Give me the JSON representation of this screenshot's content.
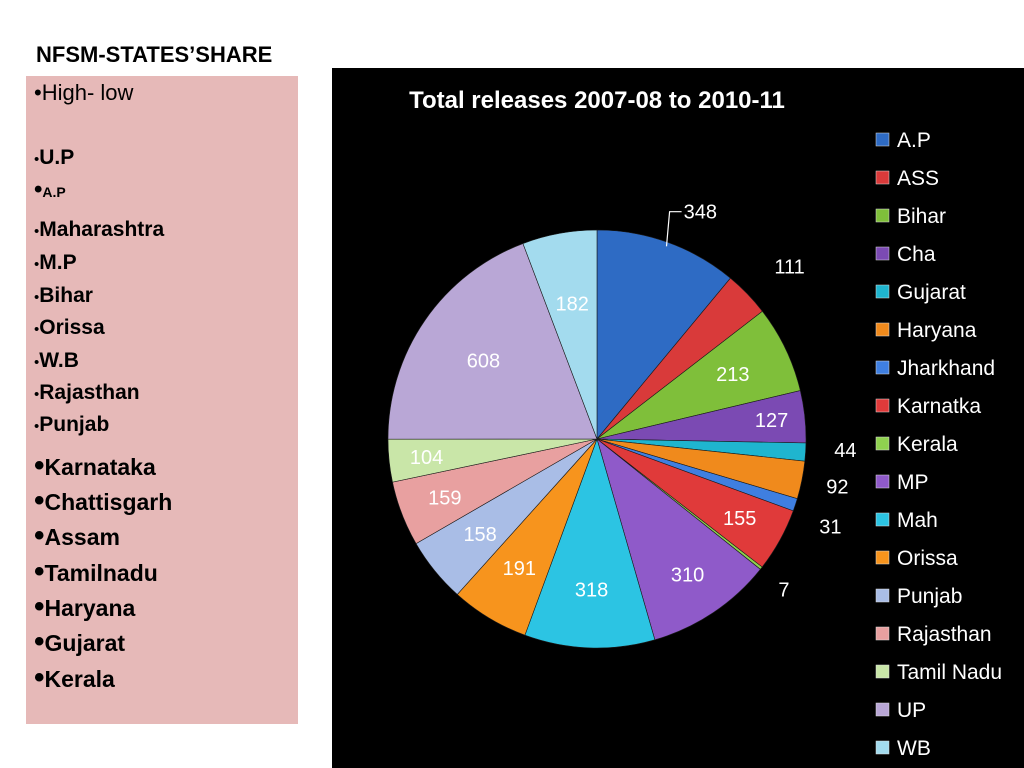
{
  "slide": {
    "title": "NFSM-STATES’SHARE"
  },
  "list": {
    "header": "High- low",
    "items": [
      "U.P",
      "A.P",
      "Maharashtra",
      "M.P",
      "Bihar",
      "Orissa",
      "W.B",
      "Rajasthan",
      "Punjab",
      "Karnataka",
      "Chattisgarh",
      "Assam",
      "Tamilnadu",
      "Haryana",
      "Gujarat",
      "Kerala"
    ],
    "bullet": "•"
  },
  "chart_data": {
    "type": "pie",
    "title": "Total releases 2007-08 to 2010-11",
    "legend_position": "right",
    "categories": [
      "A.P",
      "ASS",
      "Bihar",
      "Cha",
      "Gujarat",
      "Haryana",
      "Jharkhand",
      "Karnatka",
      "Kerala",
      "MP",
      "Mah",
      "Orissa",
      "Punjab",
      "Rajasthan",
      "Tamil Nadu",
      "UP",
      "WB"
    ],
    "values": [
      348,
      111,
      213,
      127,
      44,
      92,
      31,
      155,
      7,
      310,
      318,
      191,
      158,
      159,
      104,
      608,
      182
    ],
    "value_labels": [
      "348",
      "111",
      "213",
      "127",
      "44",
      "92",
      "31",
      "155",
      "7",
      "310",
      "318",
      "191",
      "158",
      "159",
      "104",
      "608",
      "182"
    ],
    "colors": [
      "#2e6bc4",
      "#d93a3a",
      "#7fbf3a",
      "#7b4ab3",
      "#1fb5cf",
      "#f08a1c",
      "#3f7fe0",
      "#e03a3a",
      "#8fd14f",
      "#8f5ac9",
      "#2cc4e3",
      "#f7941d",
      "#a9bde6",
      "#e8a0a0",
      "#c9e6a8",
      "#b9a7d6",
      "#a3dbee"
    ]
  }
}
